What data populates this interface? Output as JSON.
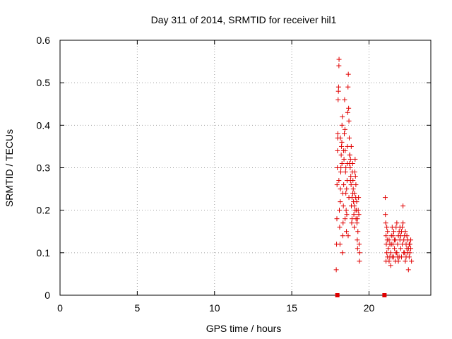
{
  "chart_data": {
    "type": "scatter",
    "title": "Day 311 of 2014, SRMTID for receiver hil1",
    "xlabel": "GPS time / hours",
    "ylabel": "SRMTID / TECUs",
    "xlim": [
      0,
      24
    ],
    "ylim": [
      0,
      0.6
    ],
    "x_ticks": [
      "0",
      "5",
      "10",
      "15",
      "20"
    ],
    "y_ticks": [
      "0",
      "0.1",
      "0.2",
      "0.3",
      "0.4",
      "0.5",
      "0.6"
    ],
    "grid": true,
    "marker": "+",
    "color": "#e00000",
    "zero_points": [
      [
        17.95,
        0
      ],
      [
        21.0,
        0
      ]
    ],
    "series": [
      {
        "values": [
          [
            17.88,
            0.06
          ],
          [
            17.9,
            0.12
          ],
          [
            17.92,
            0.18
          ],
          [
            17.93,
            0.26
          ],
          [
            17.95,
            0.3
          ],
          [
            17.96,
            0.34
          ],
          [
            17.97,
            0.37
          ],
          [
            17.98,
            0.38
          ],
          [
            18.0,
            0.46
          ],
          [
            18.02,
            0.48
          ],
          [
            18.03,
            0.49
          ],
          [
            18.05,
            0.54
          ],
          [
            18.06,
            0.555
          ],
          [
            18.08,
            0.2
          ],
          [
            18.1,
            0.16
          ],
          [
            18.12,
            0.12
          ],
          [
            18.14,
            0.22
          ],
          [
            18.15,
            0.25
          ],
          [
            18.17,
            0.29
          ],
          [
            18.18,
            0.3
          ],
          [
            18.2,
            0.33
          ],
          [
            18.22,
            0.35
          ],
          [
            18.24,
            0.36
          ],
          [
            18.25,
            0.4
          ],
          [
            18.27,
            0.42
          ],
          [
            18.28,
            0.1
          ],
          [
            18.3,
            0.14
          ],
          [
            18.32,
            0.17
          ],
          [
            18.34,
            0.21
          ],
          [
            18.36,
            0.26
          ],
          [
            18.38,
            0.32
          ],
          [
            18.4,
            0.38
          ],
          [
            18.42,
            0.46
          ],
          [
            18.44,
            0.39
          ],
          [
            18.46,
            0.34
          ],
          [
            18.48,
            0.29
          ],
          [
            18.5,
            0.24
          ],
          [
            18.52,
            0.2
          ],
          [
            18.54,
            0.15
          ],
          [
            18.56,
            0.19
          ],
          [
            18.58,
            0.27
          ],
          [
            18.6,
            0.31
          ],
          [
            18.62,
            0.43
          ],
          [
            18.64,
            0.49
          ],
          [
            18.66,
            0.52
          ],
          [
            18.68,
            0.44
          ],
          [
            18.7,
            0.41
          ],
          [
            18.72,
            0.37
          ],
          [
            18.74,
            0.31
          ],
          [
            18.76,
            0.33
          ],
          [
            18.78,
            0.3
          ],
          [
            18.8,
            0.32
          ],
          [
            18.82,
            0.28
          ],
          [
            18.84,
            0.26
          ],
          [
            18.86,
            0.21
          ],
          [
            18.88,
            0.17
          ],
          [
            18.9,
            0.23
          ],
          [
            18.92,
            0.29
          ],
          [
            18.94,
            0.31
          ],
          [
            18.96,
            0.27
          ],
          [
            18.98,
            0.25
          ],
          [
            19.0,
            0.22
          ],
          [
            19.02,
            0.19
          ],
          [
            19.04,
            0.16
          ],
          [
            19.06,
            0.24
          ],
          [
            19.08,
            0.29
          ],
          [
            19.1,
            0.32
          ],
          [
            19.12,
            0.28
          ],
          [
            19.14,
            0.23
          ],
          [
            19.16,
            0.18
          ],
          [
            19.18,
            0.2
          ],
          [
            19.2,
            0.22
          ],
          [
            19.22,
            0.17
          ],
          [
            19.24,
            0.13
          ],
          [
            19.26,
            0.11
          ],
          [
            19.28,
            0.15
          ],
          [
            19.3,
            0.2
          ],
          [
            19.32,
            0.23
          ],
          [
            19.34,
            0.19
          ],
          [
            19.36,
            0.12
          ],
          [
            19.38,
            0.08
          ],
          [
            19.4,
            0.1
          ],
          [
            18.15,
            0.37
          ],
          [
            18.35,
            0.34
          ],
          [
            18.55,
            0.25
          ],
          [
            18.75,
            0.33
          ],
          [
            18.95,
            0.24
          ],
          [
            19.15,
            0.26
          ],
          [
            18.45,
            0.18
          ],
          [
            18.65,
            0.14
          ],
          [
            18.85,
            0.35
          ],
          [
            19.05,
            0.21
          ],
          [
            18.25,
            0.31
          ],
          [
            18.05,
            0.27
          ],
          [
            18.5,
            0.3
          ],
          [
            18.7,
            0.23
          ],
          [
            18.9,
            0.18
          ],
          [
            19.1,
            0.2
          ],
          [
            18.3,
            0.24
          ],
          [
            18.6,
            0.35
          ],
          [
            18.8,
            0.27
          ],
          [
            19.25,
            0.18
          ],
          [
            21.05,
            0.23
          ],
          [
            21.06,
            0.19
          ],
          [
            21.08,
            0.17
          ],
          [
            21.1,
            0.14
          ],
          [
            21.12,
            0.12
          ],
          [
            21.15,
            0.1
          ],
          [
            21.18,
            0.13
          ],
          [
            21.2,
            0.09
          ],
          [
            21.25,
            0.11
          ],
          [
            21.3,
            0.08
          ],
          [
            21.35,
            0.12
          ],
          [
            21.4,
            0.1
          ],
          [
            21.45,
            0.14
          ],
          [
            21.5,
            0.09
          ],
          [
            21.55,
            0.12
          ],
          [
            21.6,
            0.15
          ],
          [
            21.65,
            0.11
          ],
          [
            21.7,
            0.13
          ],
          [
            21.75,
            0.16
          ],
          [
            21.8,
            0.1
          ],
          [
            21.85,
            0.12
          ],
          [
            21.9,
            0.14
          ],
          [
            21.95,
            0.09
          ],
          [
            22.0,
            0.13
          ],
          [
            22.05,
            0.11
          ],
          [
            22.1,
            0.15
          ],
          [
            22.15,
            0.16
          ],
          [
            22.2,
            0.21
          ],
          [
            22.25,
            0.13
          ],
          [
            22.3,
            0.1
          ],
          [
            22.35,
            0.08
          ],
          [
            22.4,
            0.12
          ],
          [
            22.45,
            0.14
          ],
          [
            22.5,
            0.1
          ],
          [
            22.55,
            0.06
          ],
          [
            22.6,
            0.09
          ],
          [
            22.65,
            0.12
          ],
          [
            22.7,
            0.11
          ],
          [
            22.75,
            0.08
          ],
          [
            21.1,
            0.08
          ],
          [
            21.2,
            0.15
          ],
          [
            21.3,
            0.13
          ],
          [
            21.4,
            0.07
          ],
          [
            21.5,
            0.16
          ],
          [
            21.6,
            0.09
          ],
          [
            21.7,
            0.08
          ],
          [
            21.8,
            0.17
          ],
          [
            21.9,
            0.08
          ],
          [
            22.0,
            0.16
          ],
          [
            22.1,
            0.09
          ],
          [
            22.2,
            0.17
          ],
          [
            22.3,
            0.14
          ],
          [
            22.4,
            0.09
          ],
          [
            22.5,
            0.13
          ],
          [
            22.6,
            0.12
          ],
          [
            22.7,
            0.13
          ],
          [
            21.15,
            0.16
          ],
          [
            21.35,
            0.09
          ],
          [
            21.55,
            0.14
          ],
          [
            21.75,
            0.1
          ],
          [
            21.95,
            0.15
          ],
          [
            22.15,
            0.12
          ],
          [
            22.35,
            0.15
          ],
          [
            22.55,
            0.11
          ],
          [
            21.45,
            0.12
          ],
          [
            21.65,
            0.13
          ],
          [
            21.85,
            0.09
          ],
          [
            22.05,
            0.14
          ],
          [
            22.25,
            0.1
          ],
          [
            22.45,
            0.11
          ],
          [
            22.65,
            0.1
          ]
        ]
      }
    ]
  }
}
